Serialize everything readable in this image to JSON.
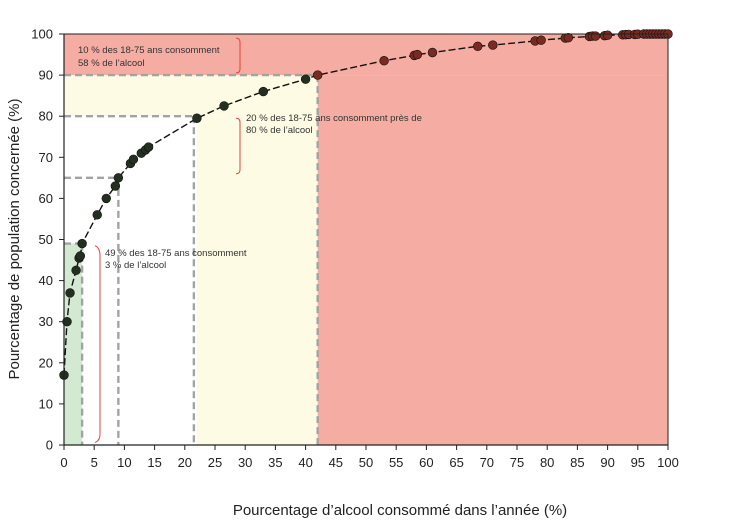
{
  "chart_data": {
    "type": "scatter",
    "xlabel": "Pourcentage d’alcool consommé dans l’année (%)",
    "ylabel": "Pourcentage de population concernée (%)",
    "xlim": [
      0,
      100
    ],
    "ylim": [
      0,
      100
    ],
    "xticks": [
      0,
      5,
      10,
      15,
      20,
      25,
      30,
      35,
      40,
      45,
      50,
      55,
      60,
      65,
      70,
      75,
      80,
      85,
      90,
      95,
      100
    ],
    "yticks": [
      0,
      10,
      20,
      30,
      40,
      50,
      60,
      70,
      80,
      90,
      100
    ],
    "grid": false,
    "legend": "none",
    "fitted_curve": true,
    "regions": [
      {
        "x": [
          0,
          3
        ],
        "y": [
          0,
          49
        ],
        "color": "#d4e9d2"
      },
      {
        "x": [
          0,
          42
        ],
        "y": [
          80,
          90
        ],
        "color": "#fdfbe3"
      },
      {
        "x": [
          22,
          42
        ],
        "y": [
          0,
          80
        ],
        "color": "#fdfbe3"
      },
      {
        "x": [
          0,
          100
        ],
        "y": [
          90,
          100
        ],
        "color": "#f5aca3"
      },
      {
        "x": [
          42,
          100
        ],
        "y": [
          0,
          90
        ],
        "color": "#f5aca3"
      }
    ],
    "reference_lines": [
      {
        "x": 3,
        "y": 49
      },
      {
        "x": 9,
        "y": 65
      },
      {
        "x": 21.5,
        "y": 80
      },
      {
        "x": 42,
        "y": 90
      }
    ],
    "points": [
      {
        "x": 0,
        "y": 17
      },
      {
        "x": 0.5,
        "y": 30
      },
      {
        "x": 1,
        "y": 37
      },
      {
        "x": 2,
        "y": 42.5
      },
      {
        "x": 2.5,
        "y": 45.5
      },
      {
        "x": 2.7,
        "y": 46
      },
      {
        "x": 3,
        "y": 49
      },
      {
        "x": 5.5,
        "y": 56
      },
      {
        "x": 7,
        "y": 60
      },
      {
        "x": 8.5,
        "y": 63
      },
      {
        "x": 9,
        "y": 65
      },
      {
        "x": 11,
        "y": 68.5
      },
      {
        "x": 11.5,
        "y": 69.5
      },
      {
        "x": 12.8,
        "y": 71
      },
      {
        "x": 13.5,
        "y": 71.8
      },
      {
        "x": 14,
        "y": 72.5
      },
      {
        "x": 22,
        "y": 79.5
      },
      {
        "x": 26.5,
        "y": 82.5
      },
      {
        "x": 33,
        "y": 86
      },
      {
        "x": 40,
        "y": 89
      },
      {
        "x": 42,
        "y": 90
      },
      {
        "x": 53,
        "y": 93.5
      },
      {
        "x": 58,
        "y": 94.8
      },
      {
        "x": 58.5,
        "y": 95
      },
      {
        "x": 61,
        "y": 95.5
      },
      {
        "x": 68.5,
        "y": 97
      },
      {
        "x": 71,
        "y": 97.3
      },
      {
        "x": 78,
        "y": 98.3
      },
      {
        "x": 79,
        "y": 98.5
      },
      {
        "x": 83,
        "y": 99
      },
      {
        "x": 83.5,
        "y": 99.1
      },
      {
        "x": 87,
        "y": 99.4
      },
      {
        "x": 87.5,
        "y": 99.5
      },
      {
        "x": 88,
        "y": 99.5
      },
      {
        "x": 89.5,
        "y": 99.6
      },
      {
        "x": 90,
        "y": 99.7
      },
      {
        "x": 92.5,
        "y": 99.8
      },
      {
        "x": 93,
        "y": 99.85
      },
      {
        "x": 93.5,
        "y": 99.9
      },
      {
        "x": 94.5,
        "y": 99.9
      },
      {
        "x": 95,
        "y": 99.95
      },
      {
        "x": 96,
        "y": 100
      },
      {
        "x": 96.5,
        "y": 100
      },
      {
        "x": 97,
        "y": 100
      },
      {
        "x": 97.5,
        "y": 100
      },
      {
        "x": 98,
        "y": 100
      },
      {
        "x": 98.5,
        "y": 100
      },
      {
        "x": 99,
        "y": 100
      },
      {
        "x": 99.5,
        "y": 100
      },
      {
        "x": 100,
        "y": 100
      }
    ],
    "annotations": [
      {
        "lines": [
          "10 % des 18-75 ans consomment",
          "58 % de l’alcool"
        ]
      },
      {
        "lines": [
          "20 % des 18-75 ans consomment près de",
          "80 % de l’alcool"
        ]
      },
      {
        "lines": [
          "49 % des 18-75 ans consomment",
          "3 % de l’alcool"
        ]
      }
    ],
    "colors": {
      "green": "#d4e9d2",
      "yellow": "#fdfbe3",
      "red": "#f5aca3",
      "dashed": "#a3a3a3",
      "bracket": "#e0443a",
      "point_dark": "#24301f",
      "point_red": "#7a2a20"
    }
  }
}
